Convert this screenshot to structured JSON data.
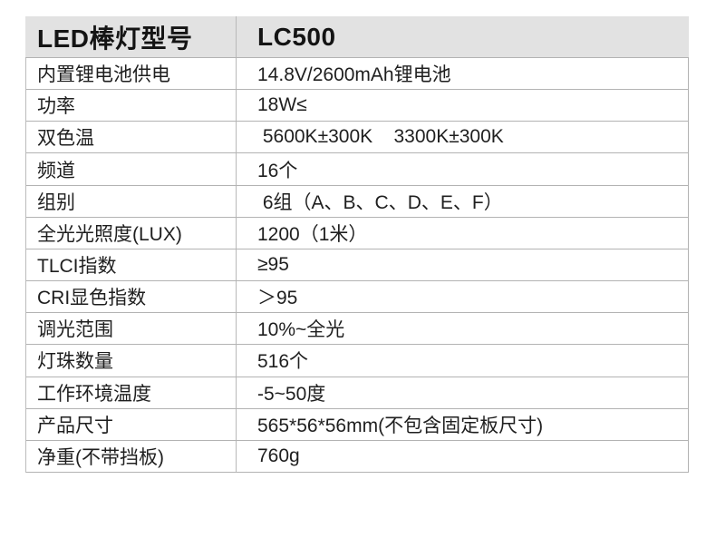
{
  "spec_table": {
    "header": {
      "label": "LED棒灯型号",
      "value": "LC500"
    },
    "rows": [
      {
        "label": "内置锂电池供电",
        "value": "14.8V/2600mAh锂电池"
      },
      {
        "label": "功率",
        "value": "18W≤"
      },
      {
        "label": "双色温",
        "value": " 5600K±300K    3300K±300K"
      },
      {
        "label": "频道",
        "value": "16个"
      },
      {
        "label": "组别",
        "value": " 6组（A、B、C、D、E、F）"
      },
      {
        "label": "全光光照度(LUX)",
        "value": "1200（1米）"
      },
      {
        "label": "TLCI指数",
        "value": "≥95"
      },
      {
        "label": "CRI显色指数",
        "value": "＞95"
      },
      {
        "label": "调光范围",
        "value": "10%~全光"
      },
      {
        "label": "灯珠数量",
        "value": "516个"
      },
      {
        "label": "工作环境温度",
        "value": "-5~50度"
      },
      {
        "label": "产品尺寸",
        "value": "565*56*56mm(不包含固定板尺寸)"
      },
      {
        "label": "净重(不带挡板)",
        "value": "760g"
      }
    ]
  },
  "colors": {
    "header_background": "#e2e2e2",
    "border": "#b3b3b3",
    "text": "#1f1f1f"
  }
}
